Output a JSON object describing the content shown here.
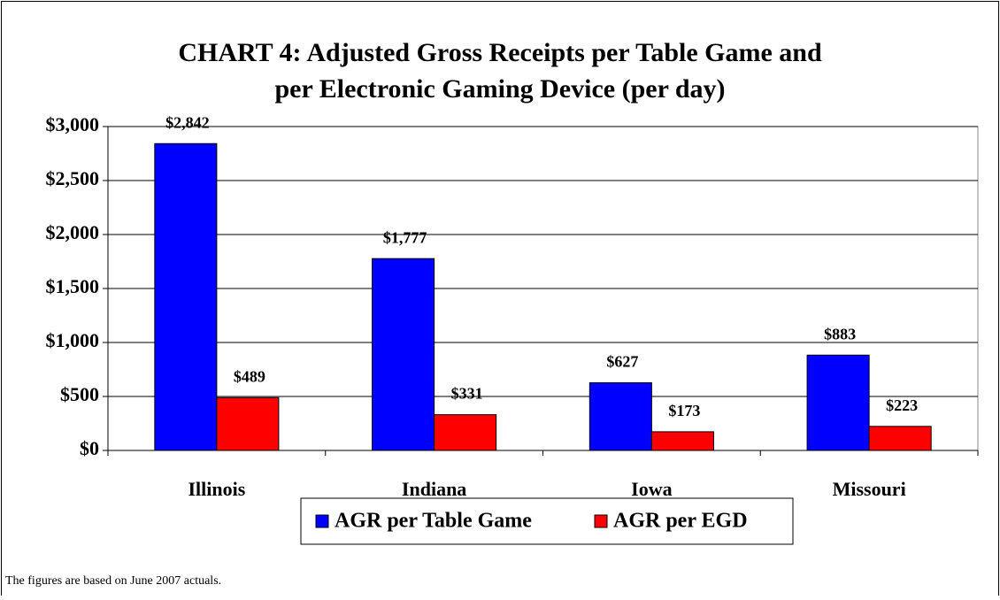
{
  "chart_data": {
    "type": "bar",
    "title": [
      "CHART 4: Adjusted Gross Receipts per Table Game and",
      "per Electronic Gaming Device (per day)"
    ],
    "categories": [
      "Illinois",
      "Indiana",
      "Iowa",
      "Missouri"
    ],
    "series": [
      {
        "name": "AGR per Table Game",
        "color": "#0000ff",
        "values": [
          2842,
          1777,
          627,
          883
        ],
        "value_labels": [
          "$2,842",
          "$1,777",
          "$627",
          "$883"
        ]
      },
      {
        "name": "AGR per EGD",
        "color": "#ff0000",
        "values": [
          489,
          331,
          173,
          223
        ],
        "value_labels": [
          "$489",
          "$331",
          "$173",
          "$223"
        ]
      }
    ],
    "ylim": [
      0,
      3000
    ],
    "yticks": [
      {
        "value": 0,
        "label": "$0"
      },
      {
        "value": 500,
        "label": "$500"
      },
      {
        "value": 1000,
        "label": "$1,000"
      },
      {
        "value": 1500,
        "label": "$1,500"
      },
      {
        "value": 2000,
        "label": "$2,000"
      },
      {
        "value": 2500,
        "label": "$2,500"
      },
      {
        "value": 3000,
        "label": "$3,000"
      }
    ],
    "grid": true,
    "legend": "bottom",
    "footnote": "The figures are based on June 2007 actuals."
  }
}
